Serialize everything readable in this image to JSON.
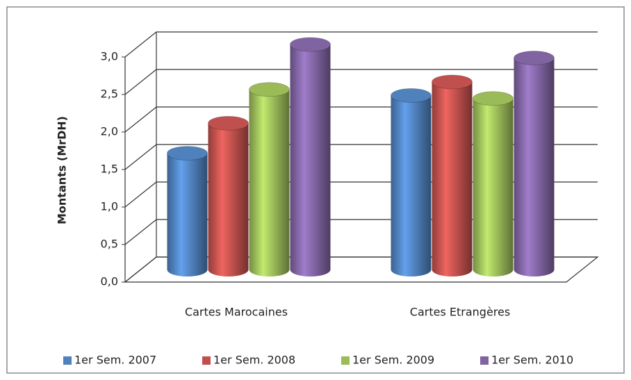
{
  "chart_data": {
    "type": "bar3d",
    "y_label": "Montants (MrDH)",
    "categories": [
      "Cartes Marocaines",
      "Cartes Etrangères"
    ],
    "series": [
      {
        "name": "1er Sem. 2007",
        "color": "#4f81bd",
        "values": [
          1.55,
          2.32
        ]
      },
      {
        "name": "1er Sem. 2008",
        "color": "#c0504d",
        "values": [
          1.95,
          2.5
        ]
      },
      {
        "name": "1er Sem. 2009",
        "color": "#9bbb59",
        "values": [
          2.4,
          2.28
        ]
      },
      {
        "name": "1er Sem. 2010",
        "color": "#8064a2",
        "values": [
          3.0,
          2.82
        ]
      }
    ],
    "ylim": [
      0,
      3
    ],
    "yticks": [
      {
        "value": 0,
        "label": "0,0"
      },
      {
        "value": 0.5,
        "label": "0,5"
      },
      {
        "value": 1,
        "label": "1,0"
      },
      {
        "value": 1.5,
        "label": "1,5"
      },
      {
        "value": 2,
        "label": "2,0"
      },
      {
        "value": 2.5,
        "label": "2,5"
      },
      {
        "value": 3,
        "label": "3,0"
      }
    ],
    "grid": true,
    "legend": "bottom"
  }
}
